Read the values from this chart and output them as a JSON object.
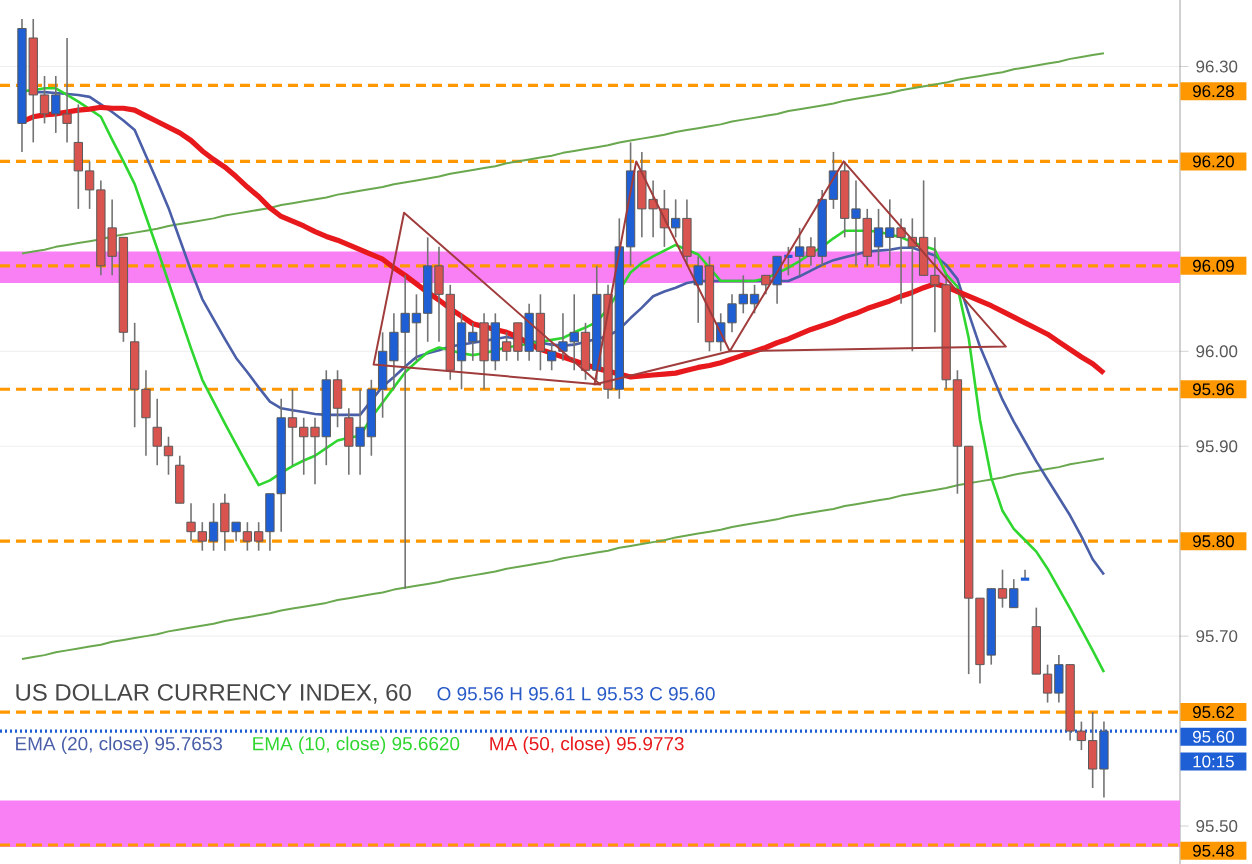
{
  "chart_data": {
    "type": "candlestick",
    "title": "US DOLLAR CURRENCY INDEX, 60",
    "subtitle": "O 95.56 H 95.61 L 95.53 C 95.60",
    "categories": [
      null,
      null,
      null,
      null,
      null,
      null,
      null,
      null,
      null,
      null,
      null,
      null,
      null,
      null,
      null,
      null,
      null,
      null,
      null,
      null,
      null,
      null,
      null,
      null,
      null,
      null,
      null,
      null,
      null,
      null,
      null,
      null,
      null,
      null,
      null,
      null,
      null,
      null,
      null,
      null,
      null,
      null,
      null,
      null,
      null,
      null,
      null,
      null,
      null,
      null,
      null,
      null,
      null,
      null,
      null,
      null,
      null,
      null,
      null,
      null,
      null,
      null,
      null,
      null,
      null,
      null,
      null,
      null,
      null,
      null,
      null,
      null,
      null,
      null,
      null,
      null,
      null,
      null,
      null,
      null,
      null,
      null,
      null,
      null,
      null,
      null,
      null,
      null,
      null,
      null,
      null,
      null,
      null,
      null,
      null,
      null,
      null
    ],
    "ohlc": [
      [
        96.24,
        96.35,
        96.21,
        96.34
      ],
      [
        96.33,
        96.35,
        96.22,
        96.27
      ],
      [
        96.27,
        96.29,
        96.24,
        96.25
      ],
      [
        96.25,
        96.29,
        96.23,
        96.27
      ],
      [
        96.25,
        96.33,
        96.22,
        96.24
      ],
      [
        96.22,
        96.26,
        96.15,
        96.19
      ],
      [
        96.19,
        96.2,
        96.15,
        96.17
      ],
      [
        96.17,
        96.18,
        96.08,
        96.09
      ],
      [
        96.13,
        96.16,
        96.08,
        96.1
      ],
      [
        96.12,
        96.12,
        96.01,
        96.02
      ],
      [
        96.01,
        96.03,
        95.92,
        95.96
      ],
      [
        95.96,
        95.98,
        95.89,
        95.93
      ],
      [
        95.92,
        95.95,
        95.88,
        95.9
      ],
      [
        95.9,
        95.91,
        95.87,
        95.89
      ],
      [
        95.88,
        95.89,
        95.84,
        95.84
      ],
      [
        95.82,
        95.84,
        95.8,
        95.81
      ],
      [
        95.81,
        95.82,
        95.79,
        95.8
      ],
      [
        95.8,
        95.84,
        95.79,
        95.82
      ],
      [
        95.84,
        95.85,
        95.79,
        95.81
      ],
      [
        95.81,
        95.82,
        95.8,
        95.82
      ],
      [
        95.81,
        95.82,
        95.79,
        95.8
      ],
      [
        95.81,
        95.82,
        95.79,
        95.8
      ],
      [
        95.81,
        95.85,
        95.79,
        95.85
      ],
      [
        95.85,
        95.95,
        95.81,
        95.93
      ],
      [
        95.93,
        95.96,
        95.88,
        95.92
      ],
      [
        95.92,
        95.93,
        95.87,
        95.91
      ],
      [
        95.92,
        95.93,
        95.86,
        95.91
      ],
      [
        95.91,
        95.98,
        95.88,
        95.97
      ],
      [
        95.97,
        95.98,
        95.92,
        95.94
      ],
      [
        95.93,
        95.94,
        95.87,
        95.9
      ],
      [
        95.9,
        95.96,
        95.87,
        95.92
      ],
      [
        95.91,
        95.97,
        95.89,
        95.96
      ],
      [
        95.96,
        96.02,
        95.93,
        96.0
      ],
      [
        95.99,
        96.04,
        95.96,
        96.02
      ],
      [
        96.02,
        96.08,
        95.75,
        96.04
      ],
      [
        96.03,
        96.06,
        95.99,
        96.04
      ],
      [
        96.04,
        96.12,
        96.01,
        96.09
      ],
      [
        96.09,
        96.11,
        96.01,
        96.06
      ],
      [
        96.06,
        96.07,
        95.97,
        95.98
      ],
      [
        95.99,
        96.04,
        95.96,
        96.03
      ],
      [
        96.01,
        96.03,
        95.99,
        96.02
      ],
      [
        96.03,
        96.04,
        95.96,
        95.99
      ],
      [
        95.99,
        96.04,
        95.98,
        96.03
      ],
      [
        96.01,
        96.02,
        95.99,
        96.0
      ],
      [
        96.03,
        96.03,
        95.99,
        96.0
      ],
      [
        96.0,
        96.05,
        95.99,
        96.04
      ],
      [
        96.04,
        96.06,
        95.98,
        96.0
      ],
      [
        95.99,
        96.01,
        95.98,
        96.0
      ],
      [
        96.0,
        96.04,
        95.99,
        96.01
      ],
      [
        96.01,
        96.06,
        95.98,
        96.02
      ],
      [
        96.02,
        96.03,
        95.97,
        95.98
      ],
      [
        95.98,
        96.09,
        95.97,
        96.06
      ],
      [
        96.06,
        96.07,
        95.95,
        95.96
      ],
      [
        95.96,
        96.14,
        95.95,
        96.11
      ],
      [
        96.11,
        96.22,
        96.09,
        96.19
      ],
      [
        96.19,
        96.21,
        96.12,
        96.15
      ],
      [
        96.16,
        96.18,
        96.12,
        96.15
      ],
      [
        96.15,
        96.17,
        96.11,
        96.13
      ],
      [
        96.13,
        96.16,
        96.12,
        96.14
      ],
      [
        96.14,
        96.16,
        96.09,
        96.1
      ],
      [
        96.07,
        96.1,
        96.03,
        96.09
      ],
      [
        96.09,
        96.1,
        96.0,
        96.01
      ],
      [
        96.01,
        96.04,
        96.0,
        96.03
      ],
      [
        96.03,
        96.06,
        96.02,
        96.05
      ],
      [
        96.05,
        96.08,
        96.04,
        96.06
      ],
      [
        96.05,
        96.07,
        96.04,
        96.06
      ],
      [
        96.08,
        96.08,
        96.06,
        96.07
      ],
      [
        96.07,
        96.1,
        96.05,
        96.1
      ],
      [
        96.1,
        96.11,
        96.08,
        96.1
      ],
      [
        96.1,
        96.13,
        96.08,
        96.11
      ],
      [
        96.11,
        96.12,
        96.09,
        96.1
      ],
      [
        96.1,
        96.17,
        96.09,
        96.16
      ],
      [
        96.16,
        96.21,
        96.15,
        96.19
      ],
      [
        96.19,
        96.2,
        96.12,
        96.14
      ],
      [
        96.14,
        96.18,
        96.09,
        96.15
      ],
      [
        96.14,
        96.15,
        96.09,
        96.1
      ],
      [
        96.11,
        96.15,
        96.09,
        96.13
      ],
      [
        96.12,
        96.16,
        96.09,
        96.13
      ],
      [
        96.13,
        96.14,
        96.05,
        96.12
      ],
      [
        96.12,
        96.14,
        96.0,
        96.11
      ],
      [
        96.12,
        96.18,
        96.08,
        96.08
      ],
      [
        96.08,
        96.12,
        96.02,
        96.07
      ],
      [
        96.07,
        96.08,
        95.96,
        95.97
      ],
      [
        95.97,
        95.98,
        95.85,
        95.9
      ],
      [
        95.9,
        95.9,
        95.66,
        95.74
      ],
      [
        95.74,
        95.74,
        95.65,
        95.67
      ],
      [
        95.68,
        95.75,
        95.67,
        95.75
      ],
      [
        95.75,
        95.77,
        95.73,
        95.74
      ],
      [
        95.73,
        95.76,
        95.73,
        95.75
      ],
      [
        95.76,
        95.77,
        95.76,
        95.76
      ],
      [
        95.71,
        95.73,
        95.66,
        95.66
      ],
      [
        95.66,
        95.67,
        95.63,
        95.64
      ],
      [
        95.64,
        95.68,
        95.63,
        95.67
      ],
      [
        95.67,
        95.67,
        95.59,
        95.6
      ],
      [
        95.6,
        95.61,
        95.58,
        95.59
      ],
      [
        95.59,
        95.62,
        95.54,
        95.56
      ],
      [
        95.56,
        95.61,
        95.53,
        95.6
      ]
    ],
    "colors": [
      "#1e5fd6",
      "#d9534f",
      "#d9534f",
      "#1e5fd6",
      "#d9534f",
      "#d9534f",
      "#d9534f",
      "#d9534f",
      "#d9534f",
      "#d9534f",
      "#d9534f",
      "#d9534f",
      "#d9534f",
      "#d9534f",
      "#d9534f",
      "#d9534f",
      "#d9534f",
      "#1e5fd6",
      "#d9534f",
      "#1e5fd6",
      "#d9534f",
      "#d9534f",
      "#1e5fd6",
      "#1e5fd6",
      "#d9534f",
      "#d9534f",
      "#d9534f",
      "#1e5fd6",
      "#d9534f",
      "#d9534f",
      "#1e5fd6",
      "#1e5fd6",
      "#1e5fd6",
      "#1e5fd6",
      "#1e5fd6",
      "#1e5fd6",
      "#1e5fd6",
      "#d9534f",
      "#d9534f",
      "#1e5fd6",
      "#1e5fd6",
      "#d9534f",
      "#1e5fd6",
      "#d9534f",
      "#d9534f",
      "#1e5fd6",
      "#d9534f",
      "#1e5fd6",
      "#1e5fd6",
      "#1e5fd6",
      "#d9534f",
      "#1e5fd6",
      "#d9534f",
      "#1e5fd6",
      "#1e5fd6",
      "#d9534f",
      "#d9534f",
      "#d9534f",
      "#1e5fd6",
      "#d9534f",
      "#1e5fd6",
      "#d9534f",
      "#1e5fd6",
      "#1e5fd6",
      "#1e5fd6",
      "#1e5fd6",
      "#d9534f",
      "#1e5fd6",
      "#1e5fd6",
      "#1e5fd6",
      "#d9534f",
      "#1e5fd6",
      "#1e5fd6",
      "#d9534f",
      "#1e5fd6",
      "#d9534f",
      "#1e5fd6",
      "#1e5fd6",
      "#d9534f",
      "#d9534f",
      "#d9534f",
      "#d9534f",
      "#d9534f",
      "#d9534f",
      "#d9534f",
      "#d9534f",
      "#1e5fd6",
      "#d9534f",
      "#1e5fd6",
      "#1e5fd6",
      "#d9534f",
      "#d9534f",
      "#1e5fd6",
      "#d9534f",
      "#d9534f",
      "#d9534f",
      "#1e5fd6"
    ],
    "series": [
      {
        "type": "line",
        "color": "#6aa84f",
        "values": [
          96.103,
          96.105,
          96.107,
          96.11,
          96.112,
          96.114,
          96.116,
          96.118,
          96.121,
          96.123,
          96.125,
          96.127,
          96.129,
          96.132,
          96.134,
          96.136,
          96.138,
          96.14,
          96.143,
          96.145,
          96.147,
          96.149,
          96.151,
          96.154,
          96.156,
          96.158,
          96.16,
          96.162,
          96.165,
          96.167,
          96.169,
          96.171,
          96.173,
          96.176,
          96.178,
          96.18,
          96.182,
          96.184,
          96.187,
          96.189,
          96.191,
          96.193,
          96.195,
          96.198,
          96.2,
          96.202,
          96.204,
          96.206,
          96.209,
          96.211,
          96.213,
          96.215,
          96.217,
          96.22,
          96.222,
          96.224,
          96.226,
          96.228,
          96.231,
          96.233,
          96.235,
          96.237,
          96.239,
          96.242,
          96.244,
          96.246,
          96.248,
          96.25,
          96.253,
          96.255,
          96.257,
          96.259,
          96.261,
          96.264,
          96.266,
          96.268,
          96.27,
          96.272,
          96.275,
          96.277,
          96.279,
          96.281,
          96.283,
          96.286,
          96.288,
          96.29,
          96.292,
          96.294,
          96.297,
          96.299,
          96.301,
          96.303,
          96.305,
          96.308,
          96.31,
          96.312,
          96.314
        ]
      },
      {
        "type": "line",
        "color": "#6aa84f",
        "values": [
          95.676,
          95.678,
          95.68,
          95.683,
          95.685,
          95.687,
          95.689,
          95.691,
          95.694,
          95.696,
          95.698,
          95.7,
          95.702,
          95.705,
          95.707,
          95.709,
          95.711,
          95.713,
          95.716,
          95.718,
          95.72,
          95.722,
          95.724,
          95.727,
          95.729,
          95.731,
          95.733,
          95.735,
          95.738,
          95.74,
          95.742,
          95.744,
          95.746,
          95.749,
          95.751,
          95.753,
          95.755,
          95.757,
          95.76,
          95.762,
          95.764,
          95.766,
          95.768,
          95.771,
          95.773,
          95.775,
          95.777,
          95.779,
          95.782,
          95.784,
          95.786,
          95.788,
          95.79,
          95.793,
          95.795,
          95.797,
          95.799,
          95.801,
          95.804,
          95.806,
          95.808,
          95.81,
          95.812,
          95.815,
          95.817,
          95.819,
          95.821,
          95.823,
          95.826,
          95.828,
          95.83,
          95.832,
          95.834,
          95.837,
          95.839,
          95.841,
          95.843,
          95.845,
          95.848,
          95.85,
          95.852,
          95.854,
          95.856,
          95.859,
          95.861,
          95.863,
          95.865,
          95.867,
          95.87,
          95.872,
          95.874,
          95.876,
          95.878,
          95.881,
          95.883,
          95.885,
          95.887
        ]
      },
      {
        "type": "line",
        "name": "EMA (20, close) 95.7653",
        "color": "#4a5fa8",
        "values": [
          null,
          96.273,
          96.273,
          96.272,
          96.271,
          96.27,
          96.268,
          96.26,
          96.252,
          96.243,
          96.233,
          96.206,
          96.179,
          96.151,
          96.118,
          96.085,
          96.055,
          96.034,
          96.013,
          95.993,
          95.978,
          95.962,
          95.947,
          95.94,
          95.938,
          95.936,
          95.934,
          95.933,
          95.933,
          95.933,
          95.933,
          95.948,
          95.963,
          95.973,
          95.984,
          95.994,
          95.998,
          96.001,
          96.005,
          96.007,
          96.009,
          96.011,
          96.013,
          96.015,
          96.013,
          96.011,
          96.009,
          96.007,
          96.006,
          96.007,
          96.01,
          96.013,
          96.016,
          96.023,
          96.035,
          96.046,
          96.058,
          96.063,
          96.067,
          96.072,
          96.074,
          96.074,
          96.074,
          96.074,
          96.074,
          96.074,
          96.074,
          96.074,
          96.074,
          96.079,
          96.085,
          96.091,
          96.096,
          96.099,
          96.102,
          96.105,
          96.106,
          96.107,
          96.109,
          96.109,
          96.105,
          96.101,
          96.091,
          96.076,
          96.04,
          96.005,
          95.977,
          95.949,
          95.926,
          95.905,
          95.884,
          95.865,
          95.846,
          95.827,
          95.805,
          95.781,
          95.765
        ]
      },
      {
        "type": "line",
        "name": "EMA (10, close) 95.6620",
        "color": "#2fd62f",
        "values": [
          96.274,
          96.275,
          96.277,
          96.277,
          96.27,
          96.263,
          96.255,
          96.247,
          96.223,
          96.2,
          96.176,
          96.142,
          96.108,
          96.073,
          96.038,
          96.003,
          95.97,
          95.947,
          95.924,
          95.902,
          95.88,
          95.859,
          95.864,
          95.872,
          95.879,
          95.885,
          95.89,
          95.898,
          95.906,
          95.909,
          95.911,
          95.93,
          95.946,
          95.962,
          95.978,
          95.989,
          95.999,
          96.004,
          96.001,
          95.998,
          95.996,
          95.998,
          96.001,
          96.004,
          96.006,
          96.008,
          96.01,
          96.012,
          96.014,
          96.02,
          96.025,
          96.031,
          96.045,
          96.064,
          96.083,
          96.093,
          96.1,
          96.106,
          96.112,
          96.107,
          96.102,
          96.088,
          96.074,
          96.074,
          96.074,
          96.074,
          96.077,
          96.082,
          96.088,
          96.095,
          96.103,
          96.11,
          96.119,
          96.127,
          96.127,
          96.127,
          96.126,
          96.123,
          96.12,
          96.115,
          96.111,
          96.107,
          96.081,
          96.068,
          96.014,
          95.928,
          95.867,
          95.832,
          95.813,
          95.801,
          95.789,
          95.771,
          95.75,
          95.729,
          95.707,
          95.685,
          95.662
        ]
      },
      {
        "type": "line",
        "name": "MA (50, close) 95.9773",
        "color": "#e8191c",
        "values": [
          96.242,
          96.247,
          96.249,
          96.25,
          96.252,
          96.254,
          96.255,
          96.257,
          96.256,
          96.256,
          96.254,
          96.248,
          96.242,
          96.236,
          96.23,
          96.222,
          96.211,
          96.202,
          96.194,
          96.184,
          96.173,
          96.163,
          96.151,
          96.142,
          96.137,
          96.132,
          96.126,
          96.121,
          96.117,
          96.112,
          96.107,
          96.102,
          96.097,
          96.088,
          96.08,
          96.071,
          96.062,
          96.054,
          96.045,
          96.037,
          96.029,
          96.026,
          96.023,
          96.02,
          96.015,
          96.008,
          96.002,
          95.998,
          95.994,
          95.99,
          95.986,
          95.982,
          95.979,
          95.976,
          95.973,
          95.974,
          95.975,
          95.976,
          95.977,
          95.98,
          95.983,
          95.985,
          95.988,
          95.992,
          95.996,
          96.0,
          96.004,
          96.009,
          96.013,
          96.018,
          96.023,
          96.027,
          96.031,
          96.036,
          96.04,
          96.045,
          96.049,
          96.053,
          96.058,
          96.062,
          96.067,
          96.071,
          96.068,
          96.063,
          96.058,
          96.053,
          96.048,
          96.042,
          96.036,
          96.03,
          96.024,
          96.018,
          96.01,
          96.002,
          95.994,
          95.987,
          95.977
        ]
      }
    ],
    "ylim": [
      95.46,
      96.37
    ],
    "yticks": [
      {
        "value": 95.5,
        "label": "95.50"
      },
      {
        "value": 95.7,
        "label": "95.70"
      },
      {
        "value": 95.9,
        "label": "95.90"
      },
      {
        "value": 96.0,
        "label": "96.00"
      },
      {
        "value": 96.3,
        "label": "96.30"
      }
    ],
    "ref_lines": [
      {
        "axis": "y",
        "value": 96.28,
        "label": "96.28",
        "color": "#ff9800",
        "line_style": "dashed"
      },
      {
        "axis": "y",
        "value": 96.2,
        "label": "96.20",
        "color": "#ff9800",
        "line_style": "dashed"
      },
      {
        "axis": "y",
        "value": 96.09,
        "label": "96.09",
        "color": "#ff9800",
        "line_style": "dashed"
      },
      {
        "axis": "y",
        "value": 95.96,
        "label": "95.96",
        "color": "#ff9800",
        "line_style": "dashed"
      },
      {
        "axis": "y",
        "value": 95.8,
        "label": "95.80",
        "color": "#ff9800",
        "line_style": "dashed"
      },
      {
        "axis": "y",
        "value": 95.62,
        "label": "95.62",
        "color": "#ff9800",
        "line_style": "dashed"
      },
      {
        "axis": "y",
        "value": 95.6,
        "label": "95.60",
        "color": "#1e5fd6",
        "line_style": "dotted"
      },
      {
        "axis": "y",
        "value": 95.48,
        "label": "95.48",
        "color": "#ff9800",
        "line_style": "dashed"
      }
    ],
    "bands": [
      {
        "axis": "y",
        "from": 96.072,
        "to": 96.105,
        "color": "#f97ff5"
      },
      {
        "axis": "y",
        "from": 95.478,
        "to": 95.527,
        "color": "#f97ff5"
      }
    ],
    "annotations": [
      "10:15"
    ],
    "grid": "y",
    "tick_labels": "y"
  }
}
